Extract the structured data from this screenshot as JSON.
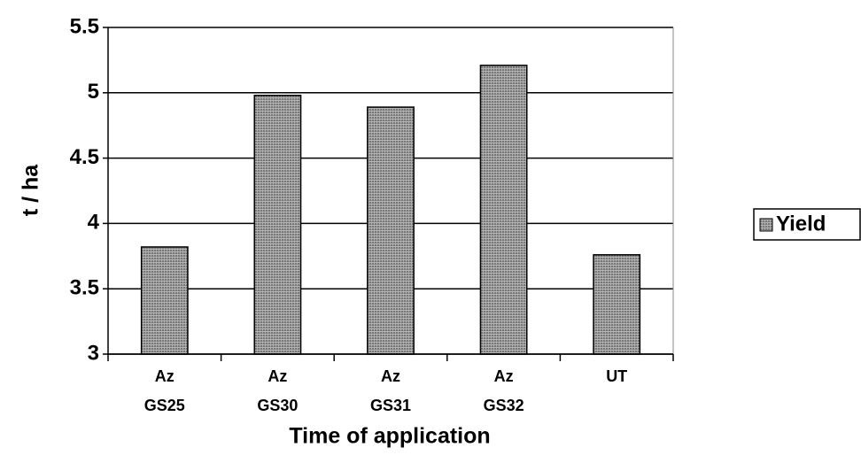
{
  "chart_data": {
    "type": "bar",
    "x_label": "Time of application",
    "y_label": "t / ha",
    "categories": [
      [
        "Az",
        "GS25"
      ],
      [
        "Az",
        "GS30"
      ],
      [
        "Az",
        "GS31"
      ],
      [
        "Az",
        "GS32"
      ],
      [
        "UT"
      ]
    ],
    "series": [
      {
        "name": "Yield",
        "color": "#b4b4b4",
        "values": [
          3.82,
          4.98,
          4.89,
          5.21,
          3.76
        ]
      }
    ],
    "ylim": [
      3,
      5.5
    ],
    "yticks": [
      3,
      3.5,
      4,
      4.5,
      5,
      5.5
    ],
    "grid": true,
    "legend": "right"
  }
}
